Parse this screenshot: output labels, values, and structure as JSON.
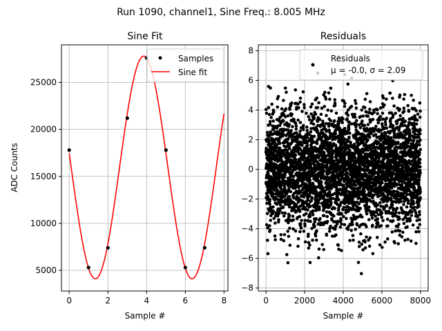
{
  "figure": {
    "suptitle": "Run 1090, channel1, Sine Freq.: 8.005 MHz"
  },
  "chart_data": [
    {
      "type": "line",
      "title": "Sine Fit",
      "xlabel": "Sample #",
      "ylabel": "ADC Counts",
      "xlim": [
        -0.4,
        8.2
      ],
      "ylim": [
        2800,
        29000
      ],
      "xticks": [
        "0",
        "2",
        "4",
        "6",
        "8"
      ],
      "yticks": [
        "5000",
        "10000",
        "15000",
        "20000",
        "25000"
      ],
      "grid": true,
      "legend_position": "upper-right",
      "series": [
        {
          "name": "Samples",
          "kind": "scatter",
          "color": "#000000",
          "x": [
            0,
            1,
            2,
            3,
            4,
            5,
            6,
            7
          ],
          "y": [
            17800,
            5300,
            7400,
            21200,
            27600,
            17800,
            5300,
            7400
          ]
        },
        {
          "name": "Sine fit",
          "kind": "line",
          "color": "#ff0000",
          "fit": {
            "amplitude": 11850,
            "offset": 15950,
            "period_samples": 4.998,
            "peak_at_sample": 3.85,
            "x_range": [
              0,
              8
            ]
          }
        }
      ]
    },
    {
      "type": "scatter",
      "title": "Residuals",
      "xlabel": "Sample #",
      "xlim": [
        -400,
        8400
      ],
      "ylim": [
        -8.2,
        8.4
      ],
      "xticks": [
        "0",
        "2000",
        "4000",
        "6000",
        "8000"
      ],
      "yticks": [
        "−8",
        "−6",
        "−4",
        "−2",
        "0",
        "2",
        "4",
        "6",
        "8"
      ],
      "grid": true,
      "legend_position": "upper-right",
      "series": [
        {
          "name": "Residuals",
          "color": "#000000",
          "n_points": 8000,
          "mean": -0.0,
          "sigma": 2.09
        }
      ],
      "legend_stats_line": "μ = -0.0, σ = 2.09"
    }
  ]
}
